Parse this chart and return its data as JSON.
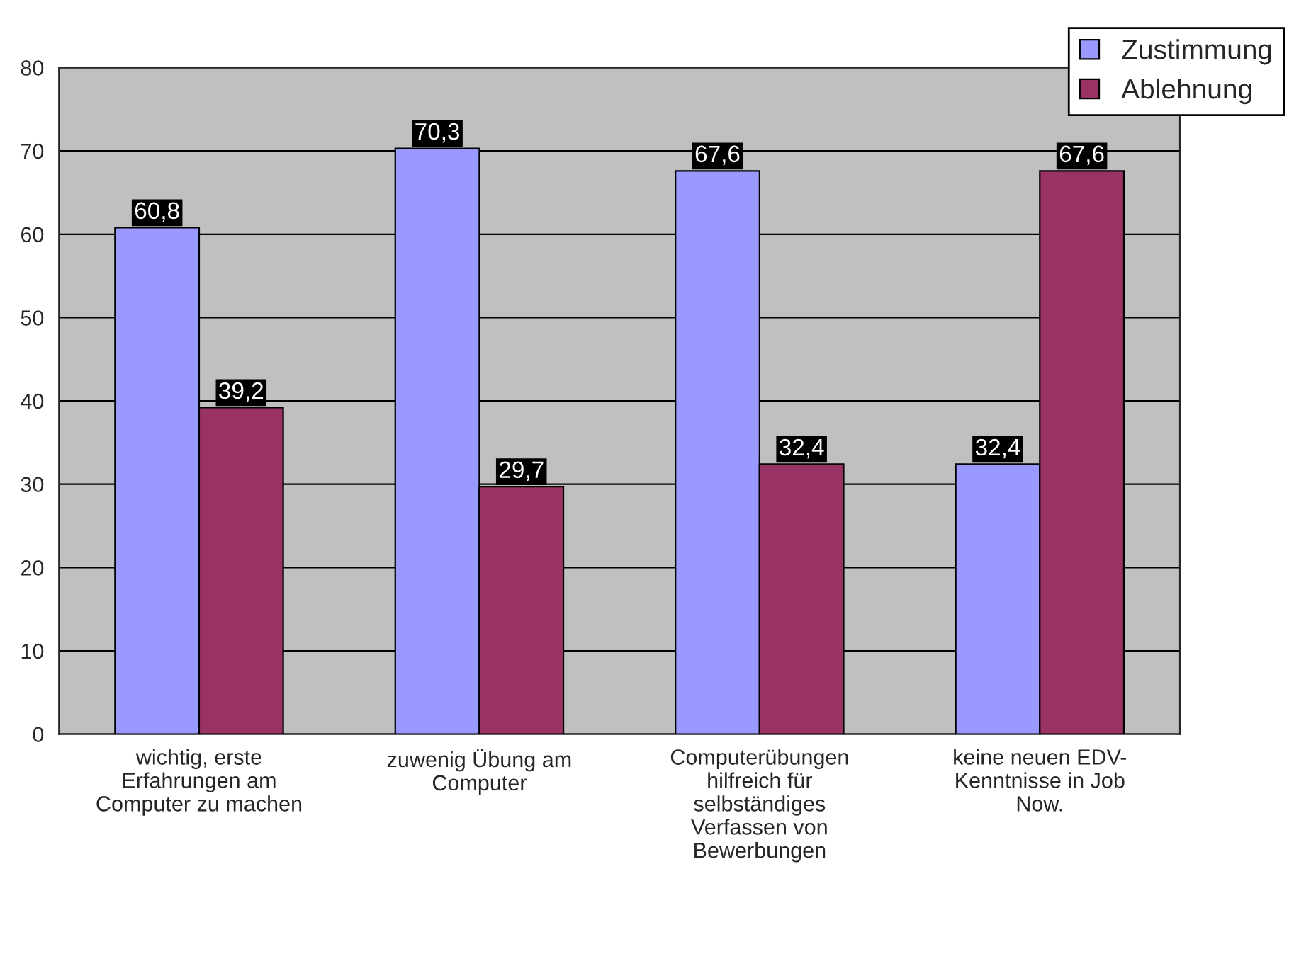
{
  "chart_data": {
    "type": "bar",
    "categories": [
      "wichtig, erste\nErfahrungen am\nComputer zu machen",
      "zuwenig Übung am\nComputer",
      "Computerübungen\nhilfreich für\nselbständiges\nVerfassen von\nBewerbungen",
      "keine neuen EDV-\nKenntnisse in Job\nNow."
    ],
    "series": [
      {
        "name": "Zustimmung",
        "color": "#9999ff",
        "values": [
          60.8,
          70.3,
          67.6,
          32.4
        ],
        "value_labels": [
          "60,8",
          "70,3",
          "67,6",
          "32,4"
        ]
      },
      {
        "name": "Ablehnung",
        "color": "#993366",
        "values": [
          39.2,
          29.7,
          32.4,
          67.6
        ],
        "value_labels": [
          "39,2",
          "29,7",
          "32,4",
          "67,6"
        ]
      }
    ],
    "ylim": [
      0,
      80
    ],
    "yticks": [
      0,
      10,
      20,
      30,
      40,
      50,
      60,
      70,
      80
    ],
    "grid": "y",
    "legend": "top right"
  }
}
